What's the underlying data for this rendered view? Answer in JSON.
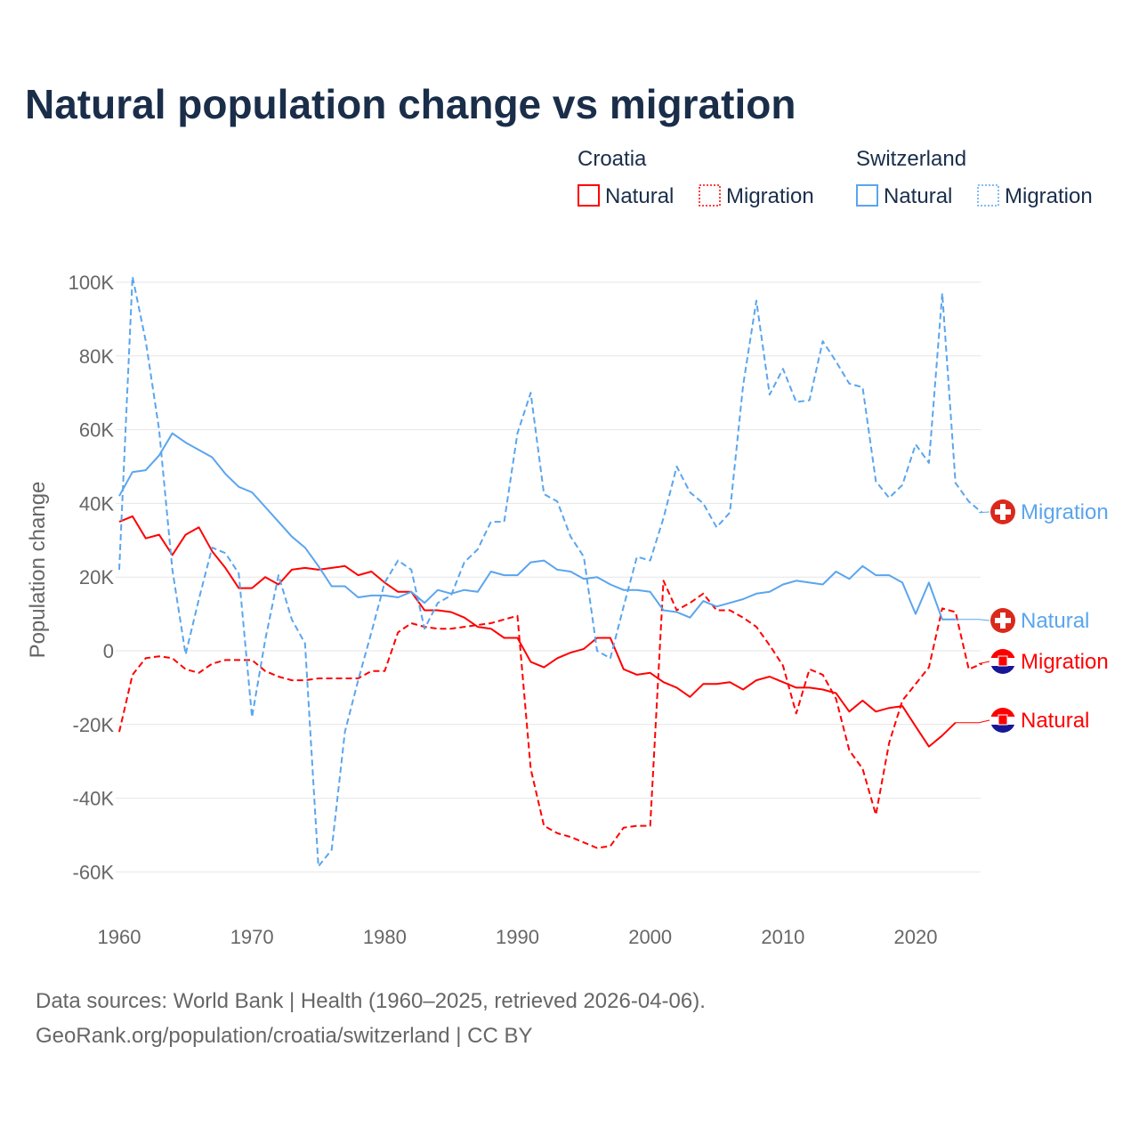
{
  "chart_data": {
    "type": "line",
    "title": "Natural population change vs migration",
    "ylabel": "Population change",
    "xlabel": "",
    "ylim": [
      -70000,
      100000
    ],
    "xlim": [
      1960,
      2025
    ],
    "y_ticks": [
      {
        "v": 100,
        "label": "100K"
      },
      {
        "v": 80,
        "label": "80K"
      },
      {
        "v": 60,
        "label": "60K"
      },
      {
        "v": 40,
        "label": "40K"
      },
      {
        "v": 20,
        "label": "20K"
      },
      {
        "v": 0,
        "label": "0"
      },
      {
        "v": -20,
        "label": "-20K"
      },
      {
        "v": -40,
        "label": "-40K"
      },
      {
        "v": -60,
        "label": "-60K"
      }
    ],
    "x_ticks": [
      "1960",
      "1970",
      "1980",
      "1990",
      "2000",
      "2010",
      "2020"
    ],
    "grid": true,
    "units_note": "values in thousands",
    "legend": {
      "placement": "top-right",
      "groups": [
        {
          "name": "Croatia",
          "items": [
            "Natural",
            "Migration"
          ]
        },
        {
          "name": "Switzerland",
          "items": [
            "Natural",
            "Migration"
          ]
        }
      ]
    },
    "series": [
      {
        "name": "Croatia Natural",
        "label": "Natural",
        "country": "Croatia",
        "color": "#ff0000",
        "dash": false,
        "start": 1960,
        "values": [
          35,
          36.5,
          30.5,
          31.5,
          26,
          31.5,
          33.5,
          27,
          22.5,
          17,
          17,
          20,
          18,
          22,
          22.5,
          22,
          22.5,
          23,
          20.5,
          21.5,
          18.5,
          16,
          16,
          11,
          11,
          10.5,
          9,
          6.5,
          6,
          3.5,
          3.5,
          -3,
          -4.5,
          -2,
          -0.5,
          0.5,
          3.5,
          3.5,
          -5,
          -6.5,
          -6,
          -8.5,
          -10,
          -12.5,
          -9,
          -9,
          -8.5,
          -10.5,
          -8,
          -7,
          -8.5,
          -10,
          -10,
          -10.5,
          -11.5,
          -16.5,
          -13.5,
          -16.5,
          -15.5,
          -15,
          -20.5,
          -26,
          -23,
          -19.5
        ]
      },
      {
        "name": "Croatia Migration",
        "label": "Migration",
        "country": "Croatia",
        "color": "#ff0000",
        "dash": true,
        "start": 1960,
        "values": [
          -22,
          -6.5,
          -2,
          -1.5,
          -2,
          -5,
          -6,
          -3.5,
          -2.5,
          -2.5,
          -2.5,
          -5.5,
          -7,
          -8,
          -8,
          -7.5,
          -7.5,
          -7.5,
          -7.5,
          -5.5,
          -5.5,
          5,
          7.5,
          6.5,
          6,
          6,
          6.5,
          7,
          7.5,
          8.5,
          9.5,
          -32,
          -47.5,
          -49.5,
          -50.5,
          -52,
          -53.5,
          -53,
          -48,
          -47.5,
          -47.5,
          19,
          11,
          13,
          15.5,
          11,
          11,
          9,
          6.5,
          1.5,
          -4,
          -17,
          -5,
          -6.5,
          -13,
          -27,
          -32,
          -44.5,
          -25,
          -13.5,
          -9,
          -4.5,
          11.5,
          10.5,
          -5,
          -3.5
        ]
      },
      {
        "name": "Switzerland Natural",
        "label": "Natural",
        "country": "Switzerland",
        "color": "#5aa5ee",
        "dash": false,
        "start": 1960,
        "values": [
          42,
          48.5,
          49,
          53,
          59,
          56.5,
          54.5,
          52.5,
          48,
          44.5,
          43,
          39,
          35,
          31,
          28,
          23,
          17.5,
          17.5,
          14.5,
          15,
          15,
          14.5,
          16,
          13,
          16.5,
          15.5,
          16.5,
          16,
          21.5,
          20.5,
          20.5,
          24,
          24.5,
          22,
          21.5,
          19.5,
          20,
          18,
          16.5,
          16.5,
          16,
          11,
          10.5,
          9,
          13.5,
          12,
          13,
          14,
          15.5,
          16,
          18,
          19,
          18.5,
          18,
          21.5,
          19.5,
          23,
          20.5,
          20.5,
          18.5,
          10,
          18.5,
          8.5,
          8.5
        ]
      },
      {
        "name": "Switzerland Migration",
        "label": "Migration",
        "country": "Switzerland",
        "color": "#5aa5ee",
        "dash": true,
        "start": 1960,
        "values": [
          22,
          101.5,
          84,
          60,
          22,
          -1,
          14,
          28,
          26.5,
          21,
          -18,
          3,
          20.5,
          8.5,
          2,
          -58.5,
          -54,
          -22,
          -8,
          5,
          18.5,
          24.5,
          22,
          6,
          13,
          15,
          24,
          27.5,
          35,
          35,
          59,
          70,
          42.5,
          40.5,
          31,
          25.5,
          0,
          -2,
          12,
          25.5,
          24.5,
          36,
          50,
          43,
          40,
          33.5,
          37.5,
          72,
          95,
          69.5,
          76.5,
          67.5,
          68,
          84,
          78.5,
          72.5,
          71.5,
          46,
          41.5,
          45,
          56,
          51,
          97,
          45.5,
          40.5,
          37.5
        ]
      }
    ]
  },
  "footer": {
    "line1": "Data sources: World Bank | Health (1960–2025, retrieved 2026-04-06).",
    "line2": "GeoRank.org/population/croatia/switzerland | CC BY"
  }
}
